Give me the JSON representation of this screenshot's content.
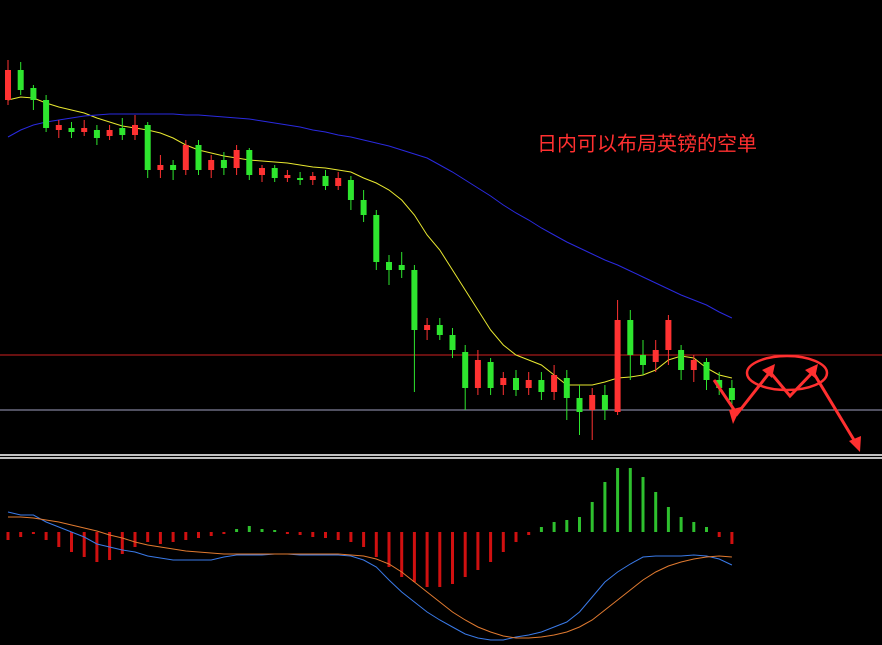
{
  "chart_data": [
    {
      "type": "candlestick",
      "annotation": "日内可以布局英镑的空单",
      "ylim": [
        0,
        455
      ],
      "up_color": "#ff3232",
      "down_color": "#2ee62e",
      "open": [
        355,
        385,
        367,
        355,
        325,
        327,
        323,
        325,
        319,
        327,
        320,
        330,
        285,
        290,
        285,
        310,
        285,
        295,
        287,
        305,
        280,
        287,
        277,
        277,
        275,
        279,
        269,
        275,
        255,
        240,
        193,
        190,
        185,
        125,
        130,
        120,
        103,
        67,
        93,
        70,
        77,
        67,
        75,
        63,
        77,
        57,
        45,
        60,
        43,
        135,
        100,
        93,
        105,
        105,
        85,
        93,
        75,
        67
      ],
      "high": [
        395,
        393,
        370,
        360,
        335,
        333,
        335,
        330,
        330,
        337,
        340,
        333,
        300,
        295,
        315,
        315,
        300,
        303,
        310,
        307,
        290,
        290,
        285,
        283,
        283,
        285,
        283,
        279,
        265,
        245,
        200,
        203,
        190,
        137,
        137,
        127,
        110,
        105,
        97,
        83,
        85,
        83,
        83,
        90,
        85,
        70,
        67,
        70,
        155,
        145,
        115,
        115,
        140,
        110,
        100,
        97,
        83,
        75
      ],
      "low": [
        350,
        360,
        345,
        323,
        317,
        317,
        319,
        310,
        315,
        315,
        315,
        277,
        277,
        275,
        280,
        280,
        277,
        280,
        280,
        275,
        273,
        273,
        273,
        270,
        270,
        265,
        265,
        245,
        233,
        185,
        170,
        177,
        63,
        115,
        115,
        97,
        45,
        60,
        60,
        60,
        59,
        60,
        55,
        55,
        35,
        20,
        15,
        35,
        40,
        75,
        80,
        83,
        90,
        75,
        73,
        65,
        60,
        45
      ],
      "close": [
        385,
        365,
        355,
        327,
        330,
        323,
        327,
        317,
        325,
        320,
        330,
        285,
        290,
        285,
        310,
        285,
        295,
        287,
        305,
        280,
        287,
        277,
        280,
        275,
        279,
        269,
        277,
        255,
        240,
        193,
        185,
        185,
        125,
        130,
        120,
        105,
        67,
        95,
        67,
        77,
        65,
        75,
        63,
        80,
        57,
        43,
        60,
        45,
        135,
        100,
        90,
        105,
        135,
        85,
        95,
        75,
        67,
        55
      ],
      "series": [
        {
          "color": "#e8e830",
          "values": [
            355,
            358,
            357,
            352,
            348,
            345,
            342,
            337,
            333,
            329,
            327,
            325,
            322,
            317,
            310,
            305,
            302,
            299,
            297,
            295,
            294,
            293,
            292,
            290,
            288,
            287,
            285,
            283,
            277,
            272,
            265,
            255,
            240,
            220,
            205,
            185,
            165,
            145,
            125,
            110,
            100,
            95,
            90,
            80,
            70,
            70,
            70,
            73,
            77,
            78,
            80,
            85,
            95,
            99,
            97,
            87,
            80,
            77
          ]
        },
        {
          "color": "#2a2ae0",
          "values": [
            318,
            325,
            330,
            333,
            335,
            337,
            339,
            340,
            341,
            341,
            341,
            341,
            341,
            341,
            340,
            340,
            339,
            338,
            337,
            336,
            334,
            332,
            330,
            328,
            325,
            323,
            320,
            318,
            315,
            312,
            309,
            305,
            301,
            297,
            290,
            283,
            275,
            267,
            259,
            250,
            242,
            235,
            227,
            220,
            213,
            207,
            201,
            195,
            190,
            184,
            178,
            172,
            166,
            160,
            155,
            150,
            143,
            137
          ]
        }
      ],
      "hlines": [
        {
          "value": 100,
          "color": "#d02020"
        },
        {
          "value": 45,
          "color": "#a0a0c0"
        }
      ]
    },
    {
      "type": "macd",
      "ylim": [
        -113,
        74
      ],
      "pos_color": "#2ec02e",
      "neg_color": "#d01010",
      "values": [
        -8,
        -5,
        -2,
        -8,
        -15,
        -20,
        -25,
        -30,
        -28,
        -22,
        -15,
        -10,
        -12,
        -10,
        -8,
        -6,
        -4,
        -2,
        3,
        6,
        3,
        2,
        -2,
        -3,
        -5,
        -6,
        -8,
        -10,
        -15,
        -25,
        -35,
        -45,
        -50,
        -55,
        -55,
        -52,
        -45,
        -38,
        -30,
        -20,
        -10,
        -3,
        5,
        10,
        12,
        15,
        30,
        50,
        64,
        64,
        55,
        40,
        25,
        15,
        10,
        5,
        -5,
        -12
      ],
      "series": [
        {
          "color": "#3a7ae8",
          "values": [
            20,
            17,
            17,
            10,
            5,
            0,
            -5,
            -12,
            -15,
            -18,
            -20,
            -24,
            -26,
            -28,
            -28,
            -28,
            -28,
            -25,
            -23,
            -23,
            -23,
            -22,
            -22,
            -23,
            -23,
            -23,
            -23,
            -24,
            -28,
            -35,
            -48,
            -60,
            -70,
            -80,
            -88,
            -95,
            -102,
            -106,
            -108,
            -108,
            -105,
            -103,
            -100,
            -95,
            -90,
            -80,
            -65,
            -50,
            -40,
            -32,
            -25,
            -24,
            -24,
            -24,
            -23,
            -24,
            -27,
            -33
          ]
        },
        {
          "color": "#e07a30",
          "values": [
            15,
            15,
            14,
            12,
            10,
            7,
            4,
            1,
            -3,
            -6,
            -10,
            -13,
            -15,
            -17,
            -19,
            -20,
            -21,
            -22,
            -22,
            -22,
            -22,
            -22,
            -22,
            -22,
            -22,
            -22,
            -22,
            -23,
            -24,
            -27,
            -32,
            -40,
            -50,
            -60,
            -70,
            -80,
            -88,
            -95,
            -100,
            -104,
            -106,
            -106,
            -105,
            -103,
            -100,
            -95,
            -88,
            -78,
            -68,
            -58,
            -48,
            -40,
            -34,
            -30,
            -27,
            -25,
            -24,
            -25
          ]
        }
      ]
    }
  ]
}
